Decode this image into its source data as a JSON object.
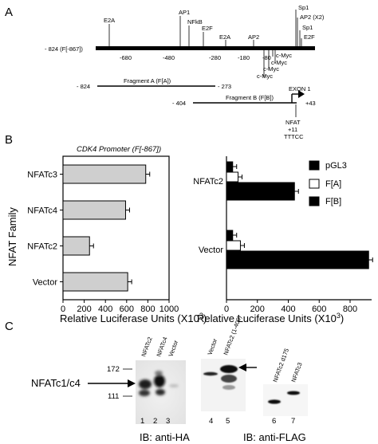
{
  "panelA": {
    "label": "A",
    "start_label": "- 824 (F[-867])",
    "positions": [
      "-680",
      "-480",
      "-280",
      "-180",
      "-80"
    ],
    "sites_top": [
      {
        "name": "E2A",
        "x": 137
      },
      {
        "name": "AP1",
        "x": 226
      },
      {
        "name": "NFkB",
        "x": 237
      },
      {
        "name": "E2F",
        "x": 255
      },
      {
        "name": "E2A",
        "x": 283
      },
      {
        "name": "AP2",
        "x": 318
      },
      {
        "name": "Sp1",
        "x": 373
      },
      {
        "name": "AP2 (X2)",
        "x": 373
      },
      {
        "name": "Sp1",
        "x": 378
      },
      {
        "name": "E2F",
        "x": 378
      }
    ],
    "sites_bottom": [
      "c-Myc",
      "c-Myc",
      "c-Myc",
      "c-Myc"
    ],
    "fragA_label": "Fragment A (F[A])",
    "fragA_start": "- 824",
    "fragA_end": "- 273",
    "fragB_label": "Fragment B (F[B])",
    "fragB_start": "- 404",
    "fragB_end": "+43",
    "exon": "EXON 1",
    "nfat_site": [
      "NFAT",
      "+11",
      "TTTCC"
    ]
  },
  "panelB": {
    "label": "B",
    "family_label": "NFAT Family",
    "chart_data": [
      {
        "type": "bar",
        "title": "CDK4 Promoter (F[-867])",
        "orientation": "horizontal",
        "categories": [
          "NFATc3",
          "NFATc4",
          "NFATc2",
          "Vector"
        ],
        "values": [
          780,
          590,
          250,
          610
        ],
        "xlim": [
          0,
          1000
        ],
        "xticks": [
          "0",
          "200",
          "400",
          "600",
          "800",
          "1000"
        ],
        "xlabel": "Relative Luciferase Units (X10",
        "xlabel_sup": "3",
        "xlabel_end": ")"
      },
      {
        "type": "bar",
        "orientation": "horizontal",
        "categories": [
          "NFATc2",
          "Vector"
        ],
        "series": [
          {
            "name": "pGL3",
            "values": [
              40,
              40
            ],
            "color": "#000000"
          },
          {
            "name": "F[A]",
            "values": [
              75,
              90
            ],
            "color": "#ffffff"
          },
          {
            "name": "F[B]",
            "values": [
              440,
              920
            ],
            "color": "#000000"
          }
        ],
        "xlim": [
          0,
          1000
        ],
        "xticks": [
          "0",
          "200",
          "400",
          "600",
          "800"
        ],
        "xlabel": "Relative Luciferase Units (X10",
        "xlabel_sup": "3",
        "xlabel_end": ")",
        "legend": "right"
      }
    ]
  },
  "panelC": {
    "label": "C",
    "markers": [
      "172",
      "111"
    ],
    "band_label": "NFATc1/c4",
    "blot1_lanes": [
      "NFATc2",
      "NFATc4",
      "Vector"
    ],
    "blot2_lanes": [
      "Vector",
      "NFATc2 (1-400)"
    ],
    "blot3_lanes": [
      "NFATc2 d175",
      "NFATc3"
    ],
    "lane_numbers": [
      "1",
      "2",
      "3",
      "4",
      "5",
      "6",
      "7"
    ],
    "ib1": "IB: anti-HA",
    "ib2": "IB: anti-FLAG"
  }
}
